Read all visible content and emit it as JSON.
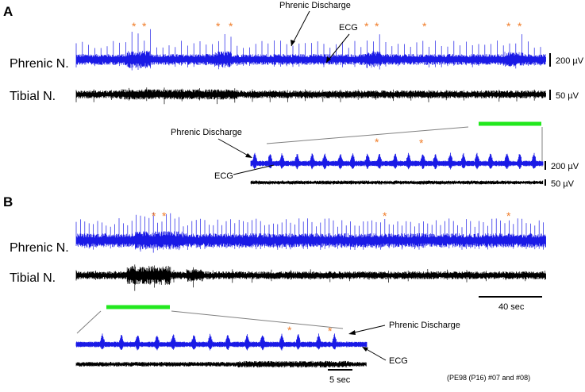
{
  "colors": {
    "phrenic": "#1a1ae6",
    "tibial": "#000000",
    "asterisk": "#f07c28",
    "expansion_bar": "#22e81e",
    "guide_line": "#808080"
  },
  "panel_a": {
    "label": "A",
    "trace_labels": {
      "phrenic": "Phrenic N.",
      "tibial": "Tibial N."
    },
    "annotations": {
      "phrenic_discharge": "Phrenic Discharge",
      "ecg": "ECG"
    },
    "scale_bars": {
      "phrenic": "200 µV",
      "tibial": "50 µV"
    },
    "asterisk": "*",
    "inset": {
      "annotations": {
        "phrenic_discharge": "Phrenic Discharge",
        "ecg": "ECG"
      },
      "scale_bars": {
        "phrenic": "200 µV",
        "tibial": "50 µV"
      },
      "asterisk": "*"
    }
  },
  "panel_b": {
    "label": "B",
    "trace_labels": {
      "phrenic": "Phrenic N.",
      "tibial": "Tibial N."
    },
    "time_scale": "40 sec",
    "asterisk": "*",
    "inset": {
      "annotations": {
        "phrenic_discharge": "Phrenic Discharge",
        "ecg": "ECG"
      },
      "time_scale": "5 sec",
      "asterisk": "*"
    }
  },
  "footnote": "(PE98 (P16) #07 and #08)"
}
